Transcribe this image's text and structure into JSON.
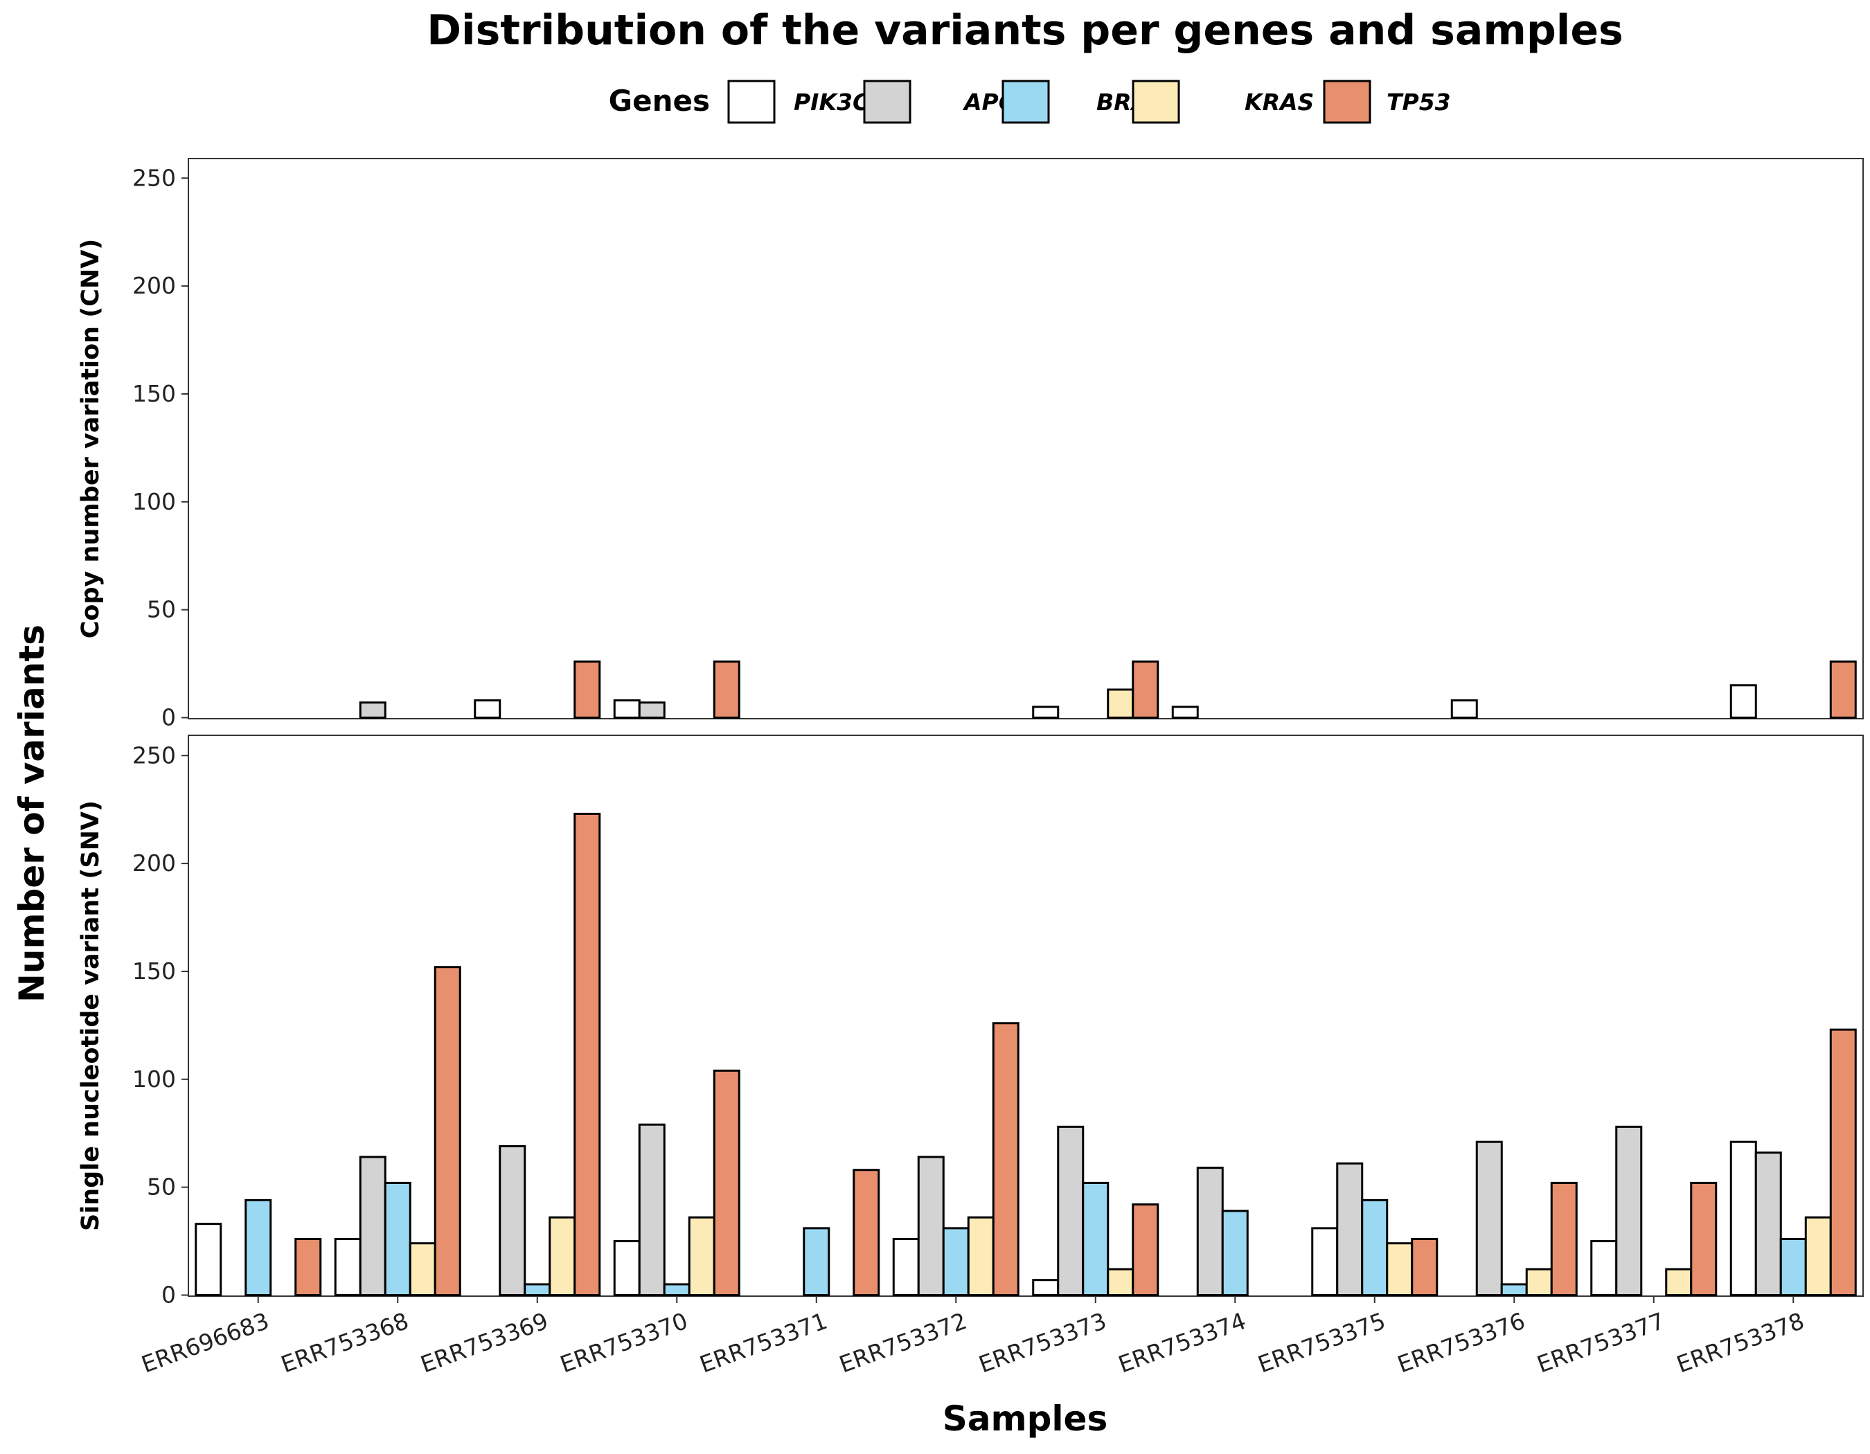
{
  "chart_data": {
    "type": "bar",
    "title": "Distribution of the variants per genes and samples",
    "legend": {
      "title": "Genes",
      "placement": "top",
      "entries": [
        "PIK3CA",
        "APC",
        "BRAF",
        "KRAS",
        "TP53"
      ]
    },
    "colors": {
      "PIK3CA": "#ffffff",
      "APC": "#d3d3d3",
      "BRAF": "#9bd9f3",
      "KRAS": "#fdebb7",
      "TP53": "#e88f6e"
    },
    "xlabel": "Samples",
    "ylabel": "Number of variants",
    "categories": [
      "ERR696683",
      "ERR753368",
      "ERR753369",
      "ERR753370",
      "ERR753371",
      "ERR753372",
      "ERR753373",
      "ERR753374",
      "ERR753375",
      "ERR753376",
      "ERR753377",
      "ERR753378"
    ],
    "ylim": [
      0,
      260
    ],
    "yticks": [
      "0",
      "50",
      "100",
      "150",
      "200",
      "250"
    ],
    "grid": false,
    "panels": [
      {
        "label": "Copy number variation (CNV)",
        "series": [
          {
            "name": "PIK3CA",
            "values": [
              0,
              0,
              8,
              8,
              0,
              0,
              5,
              5,
              0,
              8,
              0,
              15
            ]
          },
          {
            "name": "APC",
            "values": [
              0,
              7,
              0,
              7,
              0,
              0,
              0,
              0,
              0,
              0,
              0,
              0
            ]
          },
          {
            "name": "BRAF",
            "values": [
              0,
              0,
              0,
              0,
              0,
              0,
              0,
              0,
              0,
              0,
              0,
              0
            ]
          },
          {
            "name": "KRAS",
            "values": [
              0,
              0,
              0,
              0,
              0,
              0,
              13,
              0,
              0,
              0,
              0,
              0
            ]
          },
          {
            "name": "TP53",
            "values": [
              0,
              0,
              26,
              26,
              0,
              0,
              26,
              0,
              0,
              0,
              0,
              26
            ]
          }
        ]
      },
      {
        "label": "Single nucleotide variant (SNV)",
        "series": [
          {
            "name": "PIK3CA",
            "values": [
              33,
              26,
              0,
              25,
              0,
              26,
              7,
              0,
              31,
              0,
              25,
              71
            ]
          },
          {
            "name": "APC",
            "values": [
              0,
              64,
              69,
              79,
              0,
              64,
              78,
              59,
              61,
              71,
              78,
              66
            ]
          },
          {
            "name": "BRAF",
            "values": [
              44,
              52,
              5,
              5,
              31,
              31,
              52,
              39,
              44,
              5,
              0,
              26
            ]
          },
          {
            "name": "KRAS",
            "values": [
              0,
              24,
              36,
              36,
              0,
              36,
              12,
              0,
              24,
              12,
              12,
              36
            ]
          },
          {
            "name": "TP53",
            "values": [
              26,
              152,
              223,
              104,
              58,
              126,
              42,
              0,
              26,
              52,
              52,
              123
            ]
          }
        ]
      }
    ]
  }
}
